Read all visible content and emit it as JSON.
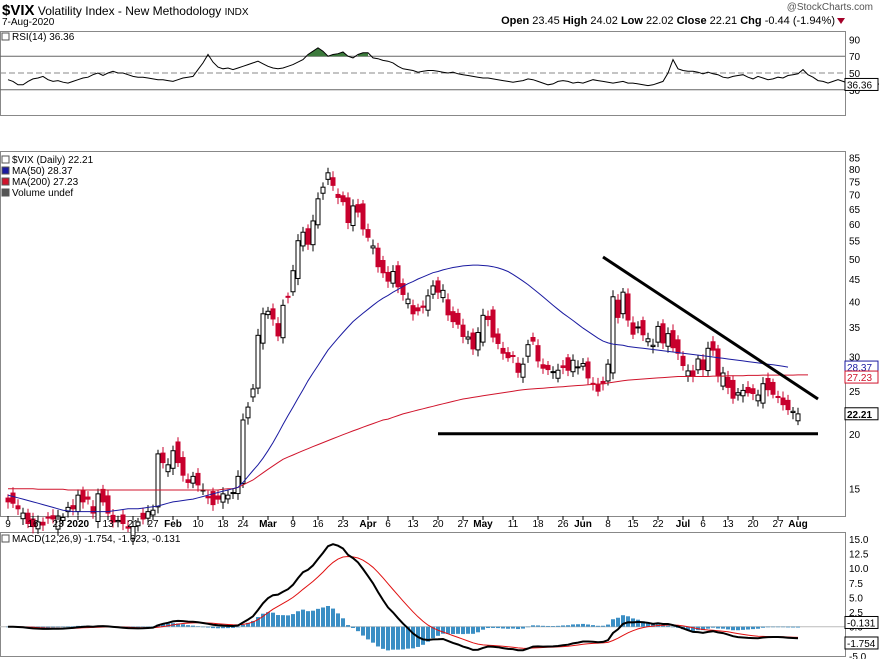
{
  "header": {
    "symbol": "$VIX",
    "name": "Volatility Index - New Methodology",
    "exchange": "INDX",
    "date": "7-Aug-2020",
    "watermark": "@StockCharts.com",
    "open_label": "Open",
    "open": "23.45",
    "high_label": "High",
    "high": "24.02",
    "low_label": "Low",
    "low": "22.02",
    "close_label": "Close",
    "close": "22.21",
    "chg_label": "Chg",
    "chg": "-0.44 (-1.94%)"
  },
  "colors": {
    "up": "#000000",
    "down": "#c8002d",
    "ma50": "#1a1aa0",
    "ma200": "#d0142c",
    "rsi_fill": "#3c7a3c",
    "macd_line": "#000000",
    "macd_signal": "#e01010",
    "histogram": "#3a8ec4"
  },
  "chart_data": [
    {
      "type": "line",
      "panel": "rsi",
      "label": "RSI(14) 36.36",
      "ylim": [
        0,
        100
      ],
      "yticks": [
        30,
        50,
        70,
        90
      ],
      "reference_lines": [
        70,
        50,
        30
      ],
      "last_value_label": "36.36",
      "values": [
        42,
        40,
        36,
        36,
        40,
        43,
        44,
        46,
        42,
        40,
        41,
        39,
        38,
        40,
        42,
        44,
        45,
        48,
        50,
        47,
        50,
        52,
        50,
        50,
        48,
        46,
        45,
        45,
        44,
        43,
        42,
        42,
        41,
        40,
        42,
        44,
        45,
        46,
        54,
        62,
        72,
        63,
        57,
        55,
        56,
        54,
        56,
        58,
        60,
        62,
        64,
        61,
        58,
        56,
        55,
        56,
        58,
        60,
        63,
        66,
        72,
        76,
        80,
        76,
        70,
        72,
        73,
        75,
        70,
        68,
        72,
        74,
        74,
        68,
        67,
        65,
        64,
        62,
        58,
        55,
        54,
        53,
        51,
        52,
        53,
        53,
        52,
        51,
        50,
        51,
        49,
        48,
        47,
        46,
        45,
        44,
        44,
        43,
        42,
        41,
        40,
        39,
        40,
        41,
        43,
        42,
        40,
        38,
        36,
        37,
        40,
        41,
        40,
        38,
        39,
        38,
        40,
        42,
        41,
        40,
        39,
        38,
        39,
        40,
        38,
        38,
        37,
        36,
        35,
        36,
        38,
        40,
        50,
        66,
        55,
        53,
        52,
        52,
        51,
        49,
        51,
        49,
        48,
        45,
        44,
        46,
        47,
        48,
        45,
        43,
        46,
        44,
        42,
        43,
        45,
        44,
        47,
        48,
        49,
        54,
        48,
        45,
        41,
        40,
        38,
        40,
        42,
        40,
        38,
        40,
        41,
        39,
        40,
        38,
        37,
        36,
        36
      ]
    },
    {
      "type": "candlestick",
      "panel": "price",
      "legend": [
        {
          "label": "$VIX (Daily) 22.21",
          "color": "#000000"
        },
        {
          "label": "MA(50) 28.37",
          "color": "#1a1aa0"
        },
        {
          "label": "MA(200) 27.23",
          "color": "#d0142c"
        },
        {
          "label": "Volume undef",
          "color": "#555555"
        }
      ],
      "y_scale": "log",
      "ylim": [
        13,
        88
      ],
      "yticks": [
        15,
        20,
        25,
        30,
        35,
        40,
        45,
        50,
        55,
        60,
        65,
        70,
        75,
        80,
        85
      ],
      "x_ticks": [
        {
          "label": "9",
          "i": 0
        },
        {
          "label": "16",
          "i": 5
        },
        {
          "label": "23",
          "i": 10
        },
        {
          "label": "2020",
          "i": 14,
          "bold": true
        },
        {
          "label": "13",
          "i": 20
        },
        {
          "label": "21",
          "i": 25
        },
        {
          "label": "27",
          "i": 29
        },
        {
          "label": "Feb",
          "i": 33,
          "bold": true
        },
        {
          "label": "10",
          "i": 38
        },
        {
          "label": "18",
          "i": 43
        },
        {
          "label": "24",
          "i": 47
        },
        {
          "label": "Mar",
          "i": 52,
          "bold": true
        },
        {
          "label": "9",
          "i": 57
        },
        {
          "label": "16",
          "i": 62
        },
        {
          "label": "23",
          "i": 67
        },
        {
          "label": "Apr",
          "i": 72,
          "bold": true
        },
        {
          "label": "6",
          "i": 76
        },
        {
          "label": "13",
          "i": 81
        },
        {
          "label": "20",
          "i": 86
        },
        {
          "label": "27",
          "i": 91
        },
        {
          "label": "May",
          "i": 95,
          "bold": true
        },
        {
          "label": "11",
          "i": 101
        },
        {
          "label": "18",
          "i": 106
        },
        {
          "label": "26",
          "i": 111
        },
        {
          "label": "Jun",
          "i": 115,
          "bold": true
        },
        {
          "label": "8",
          "i": 120
        },
        {
          "label": "15",
          "i": 125
        },
        {
          "label": "22",
          "i": 130
        },
        {
          "label": "Jul",
          "i": 135,
          "bold": true
        },
        {
          "label": "6",
          "i": 139
        },
        {
          "label": "13",
          "i": 144
        },
        {
          "label": "20",
          "i": 149
        },
        {
          "label": "27",
          "i": 154
        },
        {
          "label": "Aug",
          "i": 158,
          "bold": true
        }
      ],
      "right_labels": [
        {
          "value": 28.37,
          "text": "28.37",
          "color": "#1a1aa0"
        },
        {
          "value": 27.23,
          "text": "27.23",
          "color": "#d0142c"
        },
        {
          "value": 22.21,
          "text": "22.21",
          "color": "#000000",
          "bold": true
        }
      ],
      "trendlines": [
        {
          "from": [
            119,
            50.5
          ],
          "to": [
            162,
            24.0
          ]
        },
        {
          "from": [
            86,
            20.0
          ],
          "to": [
            162,
            20.0
          ]
        }
      ],
      "close": [
        14.0,
        13.9,
        13.5,
        13.2,
        12.5,
        12.3,
        12.6,
        12.4,
        12.9,
        12.8,
        13.0,
        12.9,
        13.6,
        13.5,
        14.5,
        14.0,
        14.2,
        13.2,
        14.6,
        14.0,
        13.2,
        12.6,
        12.7,
        12.5,
        12.2,
        12.3,
        12.6,
        12.8,
        13.3,
        13.4,
        18.0,
        17.2,
        17.0,
        18.3,
        17.2,
        16.1,
        15.5,
        16.0,
        15.3,
        14.9,
        14.3,
        13.8,
        14.2,
        14.6,
        14.5,
        14.7,
        16.0,
        21.5,
        23.0,
        25.3,
        33.5,
        37.5,
        38.0,
        36.5,
        33.4,
        39.2,
        41.0,
        47.0,
        55.0,
        57.5,
        54.0,
        61.0,
        68.5,
        72.8,
        78.5,
        73.5,
        69.0,
        67.5,
        60.5,
        66.0,
        63.9,
        58.5,
        56.0,
        53.5,
        48.0,
        46.5,
        44.5,
        46.8,
        43.2,
        41.5,
        40.5,
        37.5,
        38.1,
        38.8,
        41.2,
        43.4,
        42.0,
        42.4,
        37.3,
        36.0,
        35.5,
        33.3,
        33.2,
        31.2,
        34.0,
        37.2,
        36.4,
        33.2,
        32.1,
        30.5,
        29.8,
        30.0,
        27.6,
        28.8,
        31.9,
        32.5,
        29.3,
        28.2,
        28.0,
        27.7,
        27.9,
        28.3,
        27.9,
        29.4,
        28.4,
        28.9,
        26.8,
        25.9,
        25.0,
        26.0,
        28.8,
        41.0,
        36.8,
        42.0,
        36.3,
        33.7,
        35.0,
        33.6,
        32.9,
        31.8,
        35.1,
        32.2,
        33.8,
        31.4,
        30.5,
        28.6,
        27.8,
        27.1,
        29.6,
        28.0,
        31.3,
        31.0,
        27.1,
        27.5,
        25.5,
        24.1,
        24.8,
        25.1,
        24.8,
        24.7,
        24.5,
        26.0,
        25.2,
        24.6,
        24.3,
        23.3,
        22.7,
        22.5,
        22.2
      ],
      "ma50": [
        14.5,
        14.4,
        14.3,
        14.2,
        14.1,
        14.0,
        13.9,
        13.8,
        13.7,
        13.6,
        13.5,
        13.4,
        13.35,
        13.3,
        13.3,
        13.3,
        13.3,
        13.3,
        13.3,
        13.3,
        13.3,
        13.35,
        13.4,
        13.45,
        13.5,
        13.5,
        13.5,
        13.55,
        13.6,
        13.65,
        13.7,
        13.8,
        13.9,
        14.0,
        14.05,
        14.1,
        14.15,
        14.2,
        14.3,
        14.4,
        14.5,
        14.6,
        14.7,
        14.8,
        14.9,
        15.0,
        15.1,
        15.5,
        16.0,
        16.5,
        17.0,
        17.6,
        18.3,
        19.1,
        20.0,
        21.0,
        22.0,
        23.0,
        24.1,
        25.2,
        26.4,
        27.5,
        28.6,
        29.8,
        31.0,
        32.0,
        33.0,
        34.0,
        35.0,
        36.0,
        36.8,
        37.6,
        38.4,
        39.2,
        40.0,
        40.7,
        41.3,
        42.0,
        42.6,
        43.3,
        43.9,
        44.4,
        45.0,
        45.5,
        46.0,
        46.5,
        46.8,
        47.2,
        47.5,
        47.8,
        48.0,
        48.2,
        48.3,
        48.4,
        48.4,
        48.3,
        48.2,
        48.0,
        47.7,
        47.3,
        46.8,
        46.1,
        45.3,
        44.5,
        43.7,
        42.8,
        41.9,
        41.0,
        40.1,
        39.2,
        38.4,
        37.6,
        36.9,
        36.2,
        35.5,
        34.8,
        34.2,
        33.6,
        33.0,
        32.5,
        32.2,
        32.0,
        31.9,
        31.8,
        31.6,
        31.5,
        31.4,
        31.3,
        31.2,
        31.1,
        31.0,
        30.9,
        30.8,
        30.7,
        30.6,
        30.5,
        30.4,
        30.3,
        30.2,
        30.1,
        30.0,
        29.9,
        29.8,
        29.7,
        29.6,
        29.5,
        29.4,
        29.3,
        29.2,
        29.1,
        29.0,
        28.9,
        28.8,
        28.7,
        28.6,
        28.5,
        28.37
      ],
      "ma200": [
        15.0,
        15.0,
        15.0,
        15.0,
        15.0,
        15.0,
        14.95,
        14.95,
        14.95,
        14.95,
        14.95,
        14.95,
        14.9,
        14.9,
        14.9,
        14.9,
        14.9,
        14.9,
        14.9,
        14.9,
        14.9,
        14.9,
        14.9,
        14.9,
        14.9,
        14.9,
        14.9,
        14.9,
        14.9,
        14.9,
        14.9,
        14.9,
        14.9,
        14.9,
        14.9,
        14.9,
        14.9,
        14.9,
        14.9,
        14.9,
        14.9,
        14.9,
        14.9,
        14.95,
        15.0,
        15.0,
        15.1,
        15.3,
        15.5,
        15.7,
        16.0,
        16.3,
        16.6,
        16.9,
        17.2,
        17.5,
        17.7,
        17.9,
        18.1,
        18.3,
        18.5,
        18.7,
        18.9,
        19.1,
        19.3,
        19.5,
        19.7,
        19.9,
        20.1,
        20.3,
        20.5,
        20.7,
        20.9,
        21.1,
        21.3,
        21.5,
        21.6,
        21.8,
        22.0,
        22.2,
        22.35,
        22.5,
        22.65,
        22.8,
        22.95,
        23.1,
        23.25,
        23.4,
        23.55,
        23.7,
        23.85,
        24.0,
        24.1,
        24.2,
        24.3,
        24.4,
        24.5,
        24.6,
        24.7,
        24.8,
        24.9,
        25.0,
        25.1,
        25.2,
        25.25,
        25.3,
        25.35,
        25.4,
        25.45,
        25.5,
        25.55,
        25.6,
        25.65,
        25.7,
        25.75,
        25.8,
        25.85,
        25.9,
        25.95,
        26.0,
        26.1,
        26.2,
        26.3,
        26.4,
        26.5,
        26.55,
        26.6,
        26.65,
        26.7,
        26.75,
        26.8,
        26.85,
        26.9,
        26.95,
        27.0,
        27.0,
        27.0,
        27.0,
        27.0,
        27.0,
        27.0,
        27.05,
        27.05,
        27.05,
        27.1,
        27.1,
        27.1,
        27.1,
        27.15,
        27.15,
        27.15,
        27.2,
        27.2,
        27.2,
        27.2,
        27.2,
        27.2,
        27.2,
        27.23,
        27.23,
        27.23
      ]
    },
    {
      "type": "line",
      "panel": "macd",
      "label": "MACD(12,26,9) -1.754, -1.623, -0.131",
      "ylim": [
        -5.0,
        16.0
      ],
      "yticks": [
        -5.0,
        -2.5,
        0,
        2.5,
        5.0,
        7.5,
        10.0,
        12.5,
        15.0
      ],
      "right_labels": [
        {
          "value": -0.131,
          "text": "-0.131"
        },
        {
          "value": -1.754,
          "text": "-1.754"
        }
      ],
      "series": [
        {
          "name": "MACD",
          "color": "#000000"
        },
        {
          "name": "Signal",
          "color": "#e01010"
        },
        {
          "name": "Histogram",
          "color": "#3a8ec4"
        }
      ]
    }
  ]
}
